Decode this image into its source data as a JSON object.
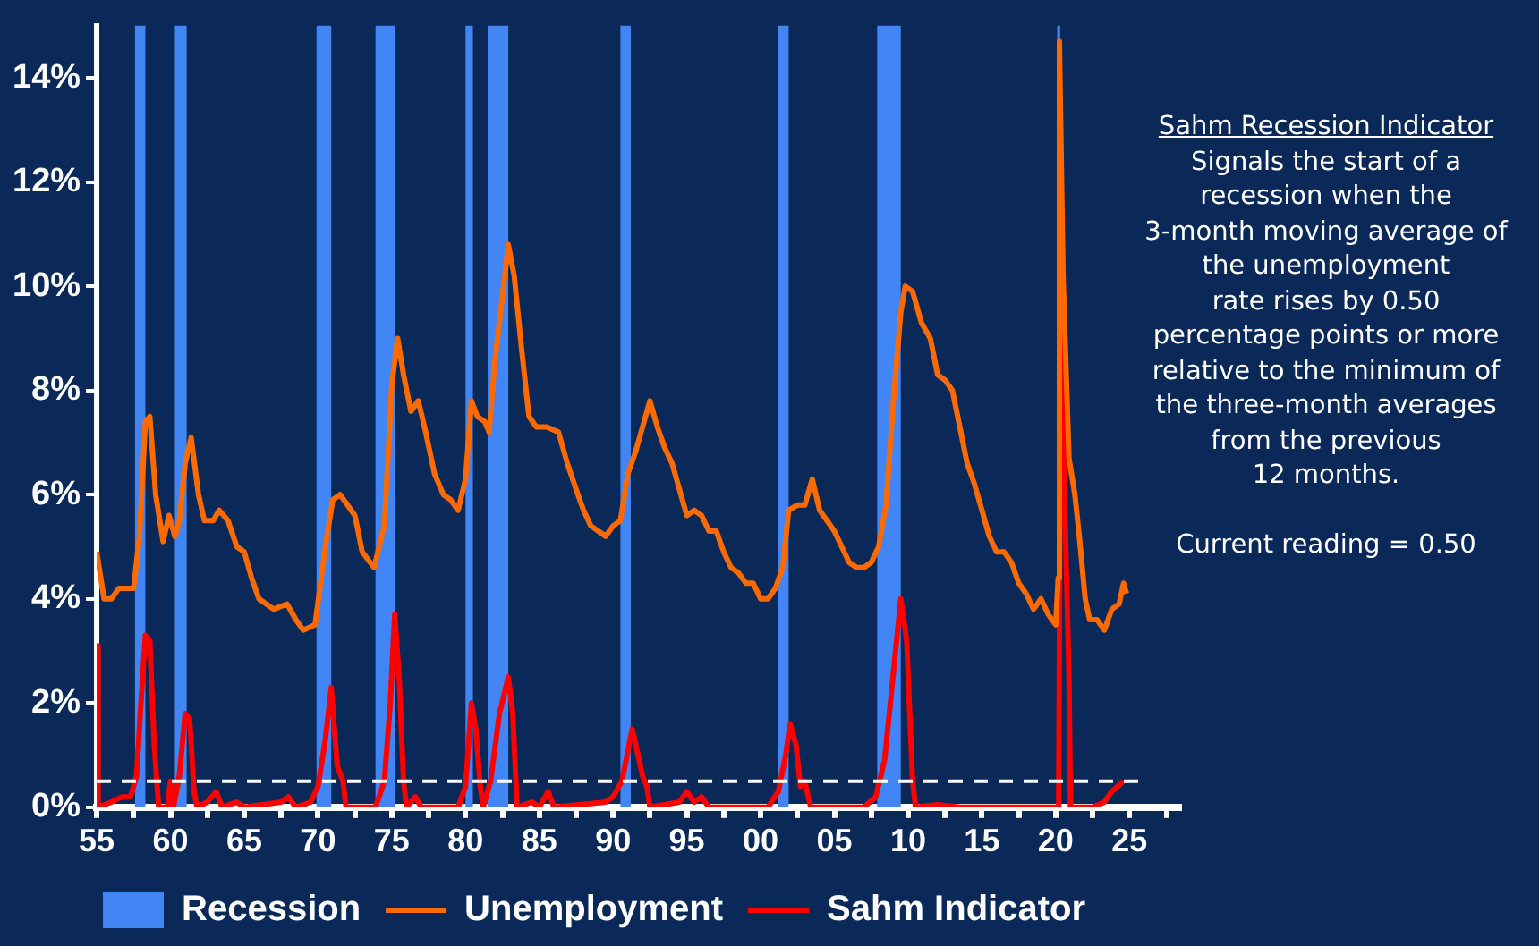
{
  "chart_data": {
    "type": "line",
    "xlim": [
      1955,
      2028.5
    ],
    "xticks": [
      {
        "value": 1955,
        "label": "55"
      },
      {
        "value": 1957.5,
        "label": null
      },
      {
        "value": 1960,
        "label": "60"
      },
      {
        "value": 1962.5,
        "label": null
      },
      {
        "value": 1965,
        "label": "65"
      },
      {
        "value": 1967.5,
        "label": null
      },
      {
        "value": 1970,
        "label": "70"
      },
      {
        "value": 1972.5,
        "label": null
      },
      {
        "value": 1975,
        "label": "75"
      },
      {
        "value": 1977.5,
        "label": null
      },
      {
        "value": 1980,
        "label": "80"
      },
      {
        "value": 1982.5,
        "label": null
      },
      {
        "value": 1985,
        "label": "85"
      },
      {
        "value": 1987.5,
        "label": null
      },
      {
        "value": 1990,
        "label": "90"
      },
      {
        "value": 1992.5,
        "label": null
      },
      {
        "value": 1995,
        "label": "95"
      },
      {
        "value": 1997.5,
        "label": null
      },
      {
        "value": 2000,
        "label": "00"
      },
      {
        "value": 2002.5,
        "label": null
      },
      {
        "value": 2005,
        "label": "05"
      },
      {
        "value": 2007.5,
        "label": null
      },
      {
        "value": 2010,
        "label": "10"
      },
      {
        "value": 2012.5,
        "label": null
      },
      {
        "value": 2015,
        "label": "15"
      },
      {
        "value": 2017.5,
        "label": null
      },
      {
        "value": 2020,
        "label": "20"
      },
      {
        "value": 2022.5,
        "label": null
      },
      {
        "value": 2025,
        "label": "25"
      },
      {
        "value": 2027.5,
        "label": null
      }
    ],
    "ylim": [
      0,
      15
    ],
    "yticks": [
      {
        "value": 0,
        "label": "0%"
      },
      {
        "value": 2,
        "label": "2%"
      },
      {
        "value": 4,
        "label": "4%"
      },
      {
        "value": 6,
        "label": "6%"
      },
      {
        "value": 8,
        "label": "8%"
      },
      {
        "value": 10,
        "label": "10%"
      },
      {
        "value": 12,
        "label": "12%"
      },
      {
        "value": 14,
        "label": "14%"
      }
    ],
    "grid": false,
    "legend": "bottom",
    "marker": "none",
    "series": [
      {
        "name": "Unemployment",
        "color": "#ff6a00",
        "x": [
          1955.0,
          1955.5,
          1956.0,
          1956.5,
          1957.0,
          1957.5,
          1957.9,
          1958.3,
          1958.6,
          1959.0,
          1959.5,
          1959.9,
          1960.3,
          1960.6,
          1961.0,
          1961.4,
          1961.9,
          1962.3,
          1962.9,
          1963.3,
          1963.9,
          1964.5,
          1965.0,
          1965.5,
          1966.0,
          1967.0,
          1967.9,
          1968.5,
          1969.0,
          1969.8,
          1970.5,
          1971.0,
          1971.5,
          1972.0,
          1972.5,
          1973.0,
          1973.8,
          1974.5,
          1975.0,
          1975.4,
          1975.8,
          1976.3,
          1976.8,
          1977.3,
          1977.9,
          1978.5,
          1979.0,
          1979.5,
          1980.0,
          1980.4,
          1980.8,
          1981.3,
          1981.6,
          1982.0,
          1982.5,
          1982.9,
          1983.3,
          1983.8,
          1984.3,
          1984.8,
          1985.5,
          1986.3,
          1986.9,
          1987.5,
          1988.0,
          1988.5,
          1989.0,
          1989.5,
          1990.0,
          1990.5,
          1991.0,
          1991.5,
          1992.0,
          1992.5,
          1993.0,
          1993.5,
          1994.0,
          1994.5,
          1995.0,
          1995.5,
          1996.0,
          1996.5,
          1997.0,
          1997.5,
          1998.0,
          1998.5,
          1999.0,
          1999.5,
          2000.0,
          2000.5,
          2001.0,
          2001.5,
          2001.9,
          2002.5,
          2003.0,
          2003.5,
          2004.0,
          2004.5,
          2005.0,
          2005.5,
          2006.0,
          2006.5,
          2007.0,
          2007.5,
          2008.0,
          2008.5,
          2009.0,
          2009.5,
          2009.8,
          2010.3,
          2010.9,
          2011.5,
          2012.0,
          2012.5,
          2013.0,
          2013.5,
          2014.0,
          2014.5,
          2015.0,
          2015.5,
          2016.0,
          2016.5,
          2017.0,
          2017.5,
          2018.0,
          2018.5,
          2019.0,
          2019.5,
          2020.0,
          2020.17,
          2020.25,
          2020.5,
          2020.9,
          2021.3,
          2021.6,
          2022.0,
          2022.3,
          2022.8,
          2023.3,
          2023.8,
          2024.3,
          2024.6,
          2024.8
        ],
        "values": [
          4.9,
          4.0,
          4.0,
          4.2,
          4.2,
          4.2,
          5.2,
          7.4,
          7.5,
          6.0,
          5.1,
          5.6,
          5.2,
          5.5,
          6.6,
          7.1,
          6.0,
          5.5,
          5.5,
          5.7,
          5.5,
          5.0,
          4.9,
          4.4,
          4.0,
          3.8,
          3.9,
          3.6,
          3.4,
          3.5,
          5.0,
          5.9,
          6.0,
          5.8,
          5.6,
          4.9,
          4.6,
          5.4,
          8.1,
          9.0,
          8.3,
          7.6,
          7.8,
          7.2,
          6.4,
          6.0,
          5.9,
          5.7,
          6.3,
          7.8,
          7.5,
          7.4,
          7.2,
          8.6,
          9.8,
          10.8,
          10.2,
          8.8,
          7.5,
          7.3,
          7.3,
          7.2,
          6.6,
          6.1,
          5.7,
          5.4,
          5.3,
          5.2,
          5.4,
          5.5,
          6.4,
          6.8,
          7.3,
          7.8,
          7.3,
          6.9,
          6.6,
          6.1,
          5.6,
          5.7,
          5.6,
          5.3,
          5.3,
          4.9,
          4.6,
          4.5,
          4.3,
          4.3,
          4.0,
          4.0,
          4.2,
          4.6,
          5.7,
          5.8,
          5.8,
          6.3,
          5.7,
          5.5,
          5.3,
          5.0,
          4.7,
          4.6,
          4.6,
          4.7,
          5.0,
          5.8,
          7.8,
          9.5,
          10.0,
          9.9,
          9.3,
          9.0,
          8.3,
          8.2,
          8.0,
          7.3,
          6.6,
          6.2,
          5.7,
          5.2,
          4.9,
          4.9,
          4.7,
          4.3,
          4.1,
          3.8,
          4.0,
          3.7,
          3.5,
          4.4,
          14.7,
          10.2,
          6.7,
          6.0,
          5.2,
          4.0,
          3.6,
          3.6,
          3.4,
          3.8,
          3.9,
          4.3,
          4.1
        ]
      },
      {
        "name": "Sahm Indicator",
        "color": "#ff0000",
        "x": [
          1955.0,
          1955.1,
          1956.0,
          1956.7,
          1957.3,
          1957.7,
          1958.0,
          1958.3,
          1958.6,
          1958.9,
          1959.2,
          1959.8,
          1960.0,
          1960.2,
          1960.6,
          1961.0,
          1961.3,
          1961.6,
          1961.8,
          1962.5,
          1963.1,
          1963.5,
          1964.5,
          1965.0,
          1967.5,
          1968.0,
          1968.5,
          1969.5,
          1970.0,
          1970.5,
          1970.9,
          1971.3,
          1971.7,
          1971.9,
          1973.9,
          1974.5,
          1974.9,
          1975.2,
          1975.5,
          1975.8,
          1976.0,
          1976.6,
          1977.0,
          1979.5,
          1980.0,
          1980.4,
          1980.7,
          1981.0,
          1981.2,
          1981.7,
          1982.3,
          1982.9,
          1983.2,
          1983.5,
          1984.5,
          1985.0,
          1985.6,
          1986.0,
          1989.5,
          1990.0,
          1990.6,
          1991.3,
          1991.7,
          1992.0,
          1992.3,
          1992.5,
          1994.5,
          1995.0,
          1995.5,
          1996.0,
          1996.5,
          2000.5,
          2001.2,
          2001.7,
          2002.0,
          2002.4,
          2002.7,
          2003.0,
          2003.4,
          2007.0,
          2007.8,
          2008.4,
          2008.9,
          2009.5,
          2009.9,
          2010.3,
          2010.5,
          2012.0,
          2013.5,
          2020.0,
          2020.2,
          2020.35,
          2020.6,
          2020.9,
          2021.0,
          2022.5,
          2023.3,
          2023.8,
          2024.2,
          2024.6
        ],
        "values": [
          3.1,
          0,
          0.1,
          0.2,
          0.2,
          0.6,
          2.0,
          3.3,
          3.2,
          1.2,
          0,
          0,
          0.5,
          0,
          0.6,
          1.8,
          1.7,
          0.3,
          0,
          0.1,
          0.3,
          0,
          0.1,
          0,
          0.1,
          0.2,
          0,
          0.1,
          0.4,
          1.3,
          2.3,
          0.8,
          0.5,
          0,
          0,
          0.5,
          2.0,
          3.7,
          2.5,
          0.5,
          0,
          0.2,
          0,
          0,
          0.4,
          2.0,
          1.5,
          0.4,
          0,
          0.5,
          1.8,
          2.5,
          1.8,
          0,
          0.1,
          0,
          0.3,
          0,
          0.1,
          0.2,
          0.5,
          1.5,
          1.0,
          0.6,
          0.4,
          0,
          0.1,
          0.3,
          0.1,
          0.2,
          0,
          0,
          0.3,
          1.0,
          1.6,
          1.2,
          0.4,
          0.5,
          0,
          0,
          0.2,
          0.9,
          2.3,
          4.0,
          3.2,
          0.5,
          0,
          0.05,
          0,
          0,
          0,
          9.5,
          6.0,
          2.5,
          0,
          0,
          0.1,
          0.3,
          0.4,
          0.5
        ]
      }
    ],
    "bands": [
      {
        "axis": "x",
        "from": 1957.6,
        "to": 1958.3,
        "label": "Recession",
        "color": "#4285f4"
      },
      {
        "axis": "x",
        "from": 1960.3,
        "to": 1961.1,
        "color": "#4285f4"
      },
      {
        "axis": "x",
        "from": 1969.9,
        "to": 1970.9,
        "color": "#4285f4"
      },
      {
        "axis": "x",
        "from": 1973.9,
        "to": 1975.2,
        "color": "#4285f4"
      },
      {
        "axis": "x",
        "from": 1980.0,
        "to": 1980.5,
        "color": "#4285f4"
      },
      {
        "axis": "x",
        "from": 1981.5,
        "to": 1982.9,
        "color": "#4285f4"
      },
      {
        "axis": "x",
        "from": 1990.5,
        "to": 1991.2,
        "color": "#4285f4"
      },
      {
        "axis": "x",
        "from": 2001.2,
        "to": 2001.9,
        "color": "#4285f4"
      },
      {
        "axis": "x",
        "from": 2007.9,
        "to": 2009.5,
        "color": "#4285f4"
      },
      {
        "axis": "x",
        "from": 2020.1,
        "to": 2020.3,
        "color": "#4285f4"
      }
    ],
    "ref_lines": [
      {
        "axis": "y",
        "value": 0.5,
        "color": "#ffffff",
        "line_style": "dashed"
      }
    ],
    "annotations": [
      "Sahm Recession Indicator",
      "Signals the start of a\nrecession when the\n3-month moving average of\nthe unemployment\nrate rises by 0.50\npercentage points or more\nrelative to the minimum of\nthe three-month averages\nfrom the previous\n12 months.",
      "Current reading = 0.50"
    ]
  }
}
